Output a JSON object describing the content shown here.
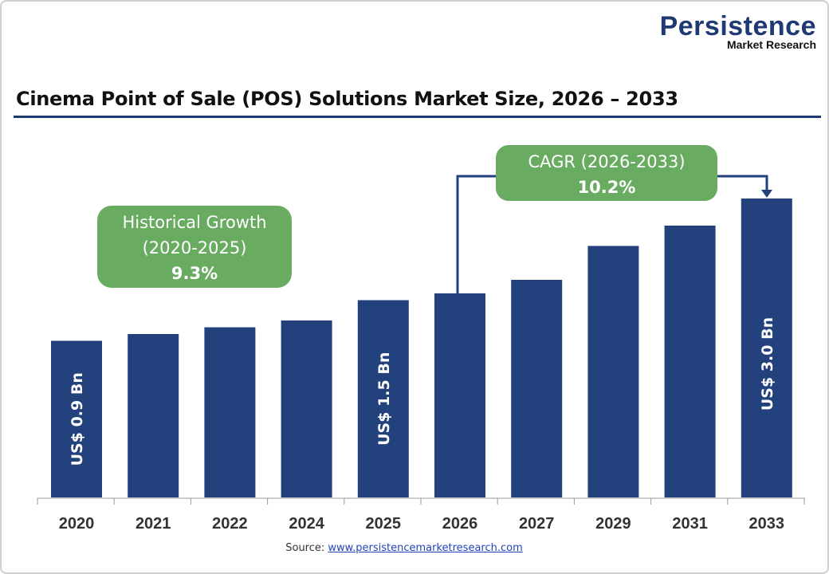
{
  "logo": {
    "line1": "Persistence",
    "line2": "Market Research"
  },
  "title": "Cinema Point of Sale (POS) Solutions Market Size, 2026 – 2033",
  "source": {
    "label": "Source:",
    "link": "www.persistencemarketresearch.com"
  },
  "colors": {
    "bar": "#23427d",
    "callout": "#6aab62",
    "title_rule": "#1f3a73"
  },
  "chart_data": {
    "type": "bar",
    "title": "Cinema Point of Sale (POS) Solutions Market Size, 2026 – 2033",
    "categories": [
      "2020",
      "2021",
      "2022",
      "2024",
      "2025",
      "2026",
      "2027",
      "2029",
      "2031",
      "2033"
    ],
    "values": [
      0.9,
      1.0,
      1.1,
      1.2,
      1.5,
      1.6,
      1.8,
      2.3,
      2.6,
      3.0
    ],
    "unit": "US$ Bn",
    "data_labels": {
      "0": "US$ 0.9 Bn",
      "4": "US$ 1.5 Bn",
      "9": "US$ 3.0 Bn"
    },
    "grid": false,
    "annotations": [
      {
        "line1": "Historical Growth",
        "line2": "(2020-2025)",
        "value": "9.3%"
      },
      {
        "line1": "CAGR (2026-2033)",
        "value": "10.2%"
      }
    ]
  }
}
